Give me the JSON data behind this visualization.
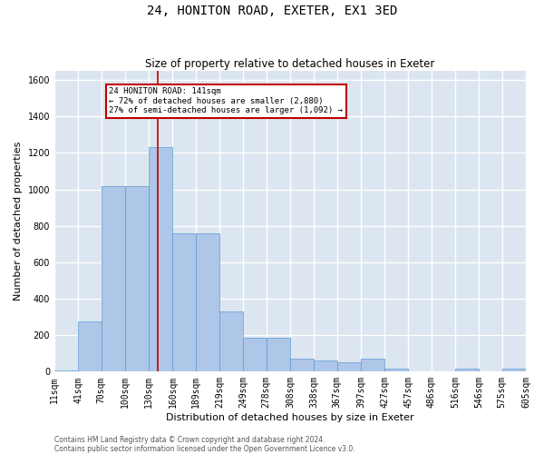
{
  "title": "24, HONITON ROAD, EXETER, EX1 3ED",
  "subtitle": "Size of property relative to detached houses in Exeter",
  "xlabel": "Distribution of detached houses by size in Exeter",
  "ylabel": "Number of detached properties",
  "footnote": "Contains HM Land Registry data © Crown copyright and database right 2024.\nContains public sector information licensed under the Open Government Licence v3.0.",
  "property_label": "24 HONITON ROAD: 141sqm",
  "annotation_line1": "← 72% of detached houses are smaller (2,880)",
  "annotation_line2": "27% of semi-detached houses are larger (1,092) →",
  "property_size": 141,
  "bin_edges": [
    11,
    41,
    70,
    100,
    130,
    160,
    189,
    219,
    249,
    278,
    308,
    338,
    367,
    397,
    427,
    457,
    486,
    516,
    546,
    575,
    605
  ],
  "bin_counts": [
    5,
    275,
    1020,
    1020,
    1230,
    760,
    760,
    330,
    185,
    185,
    70,
    60,
    50,
    70,
    15,
    0,
    0,
    15,
    0,
    15
  ],
  "bar_color": "#aec6e8",
  "bar_edge_color": "#5b9bd5",
  "vline_color": "#c00000",
  "vline_x": 141,
  "ylim": [
    0,
    1650
  ],
  "yticks": [
    0,
    200,
    400,
    600,
    800,
    1000,
    1200,
    1400,
    1600
  ],
  "background_color": "#dce6f0",
  "grid_color": "#ffffff",
  "fig_background": "#ffffff",
  "annotation_box_edge": "#c00000",
  "annotation_box_face": "#ffffff",
  "title_fontsize": 10,
  "subtitle_fontsize": 8.5,
  "label_fontsize": 8,
  "tick_fontsize": 7,
  "footnote_fontsize": 5.5
}
